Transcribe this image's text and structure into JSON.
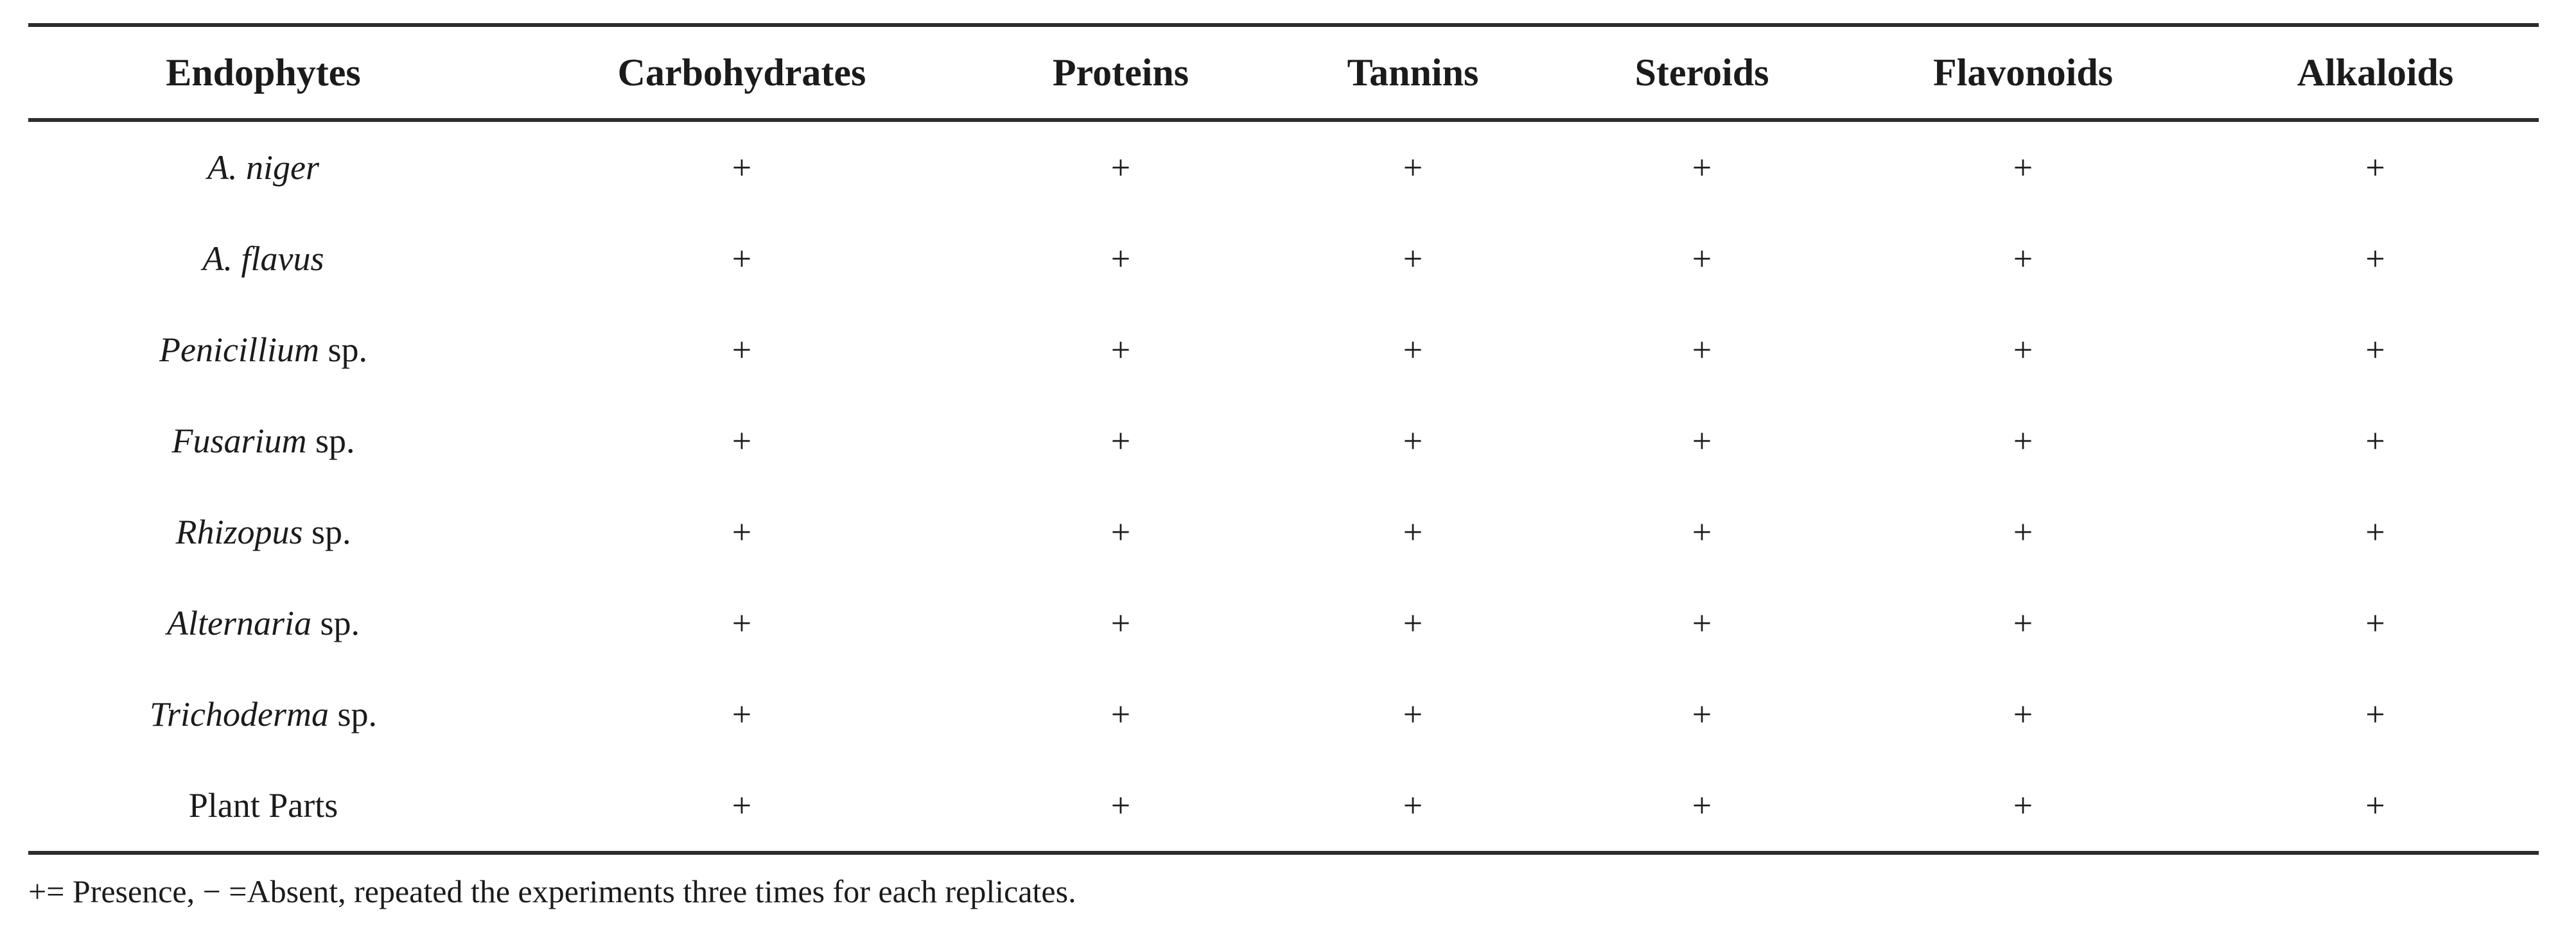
{
  "page": {
    "background": "#ffffff",
    "text_color": "#1b1b1b",
    "rule_color": "#2d2d2d"
  },
  "table": {
    "columns": [
      {
        "label": "Endophytes"
      },
      {
        "label": "Carbohydrates"
      },
      {
        "label": "Proteins"
      },
      {
        "label": "Tannins"
      },
      {
        "label": "Steroids"
      },
      {
        "label": "Flavonoids"
      },
      {
        "label": "Alkaloids"
      }
    ],
    "rows": [
      {
        "name": "A. niger",
        "suffix": "",
        "values": [
          "+",
          "+",
          "+",
          "+",
          "+",
          "+"
        ]
      },
      {
        "name": "A. flavus",
        "suffix": "",
        "values": [
          "+",
          "+",
          "+",
          "+",
          "+",
          "+"
        ]
      },
      {
        "name": "Penicillium",
        "suffix": " sp.",
        "values": [
          "+",
          "+",
          "+",
          "+",
          "+",
          "+"
        ]
      },
      {
        "name": "Fusarium",
        "suffix": " sp.",
        "values": [
          "+",
          "+",
          "+",
          "+",
          "+",
          "+"
        ]
      },
      {
        "name": "Rhizopus",
        "suffix": " sp.",
        "values": [
          "+",
          "+",
          "+",
          "+",
          "+",
          "+"
        ]
      },
      {
        "name": "Alternaria",
        "suffix": " sp.",
        "values": [
          "+",
          "+",
          "+",
          "+",
          "+",
          "+"
        ]
      },
      {
        "name": "Trichoderma",
        "suffix": " sp.",
        "values": [
          "+",
          "+",
          "+",
          "+",
          "+",
          "+"
        ]
      },
      {
        "name": "",
        "suffix": "Plant Parts",
        "values": [
          "+",
          "+",
          "+",
          "+",
          "+",
          "+"
        ]
      }
    ],
    "footnote": "+= Presence, − =Absent, repeated the experiments three times for each replicates."
  }
}
